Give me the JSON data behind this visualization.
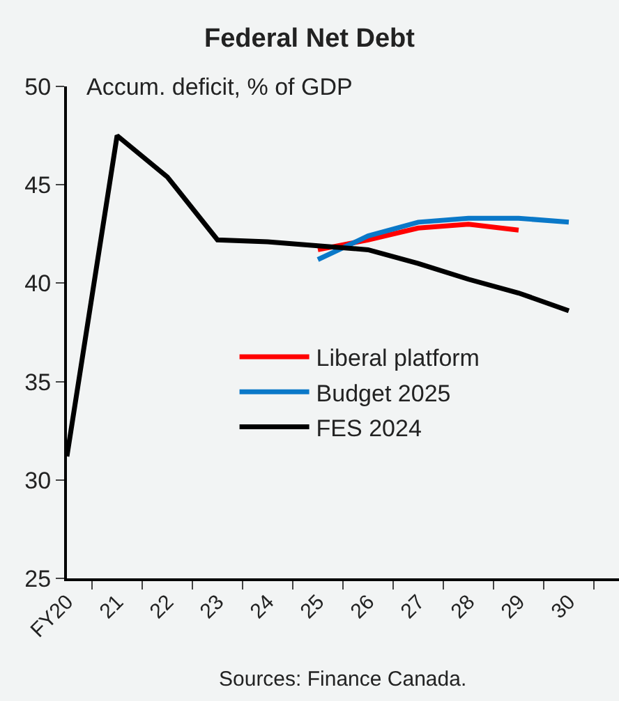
{
  "chart_data": {
    "type": "line",
    "title": "Federal Net Debt",
    "ylabel": "Accum. deficit, % of GDP",
    "categories": [
      "FY20",
      "21",
      "22",
      "23",
      "24",
      "25",
      "26",
      "27",
      "28",
      "29",
      "30",
      null
    ],
    "series": [
      {
        "name": "Liberal platform",
        "color": "#ff0000",
        "values": [
          null,
          null,
          null,
          null,
          null,
          41.7,
          42.2,
          42.8,
          43.0,
          42.7,
          null,
          null
        ]
      },
      {
        "name": "Budget 2025",
        "color": "#0a78c8",
        "values": [
          null,
          null,
          null,
          null,
          null,
          41.2,
          42.4,
          43.1,
          43.3,
          43.3,
          43.1,
          null
        ]
      },
      {
        "name": "FES 2024",
        "color": "#000000",
        "values": [
          31.2,
          47.5,
          45.4,
          42.2,
          42.1,
          41.9,
          41.7,
          41.0,
          40.2,
          39.5,
          38.6,
          null
        ]
      }
    ],
    "ylim": [
      25,
      50
    ],
    "yticks": [
      25,
      30,
      35,
      40,
      45,
      50
    ],
    "grid": false,
    "legend": "left",
    "marker": "none",
    "line_style": "solid",
    "annotations": [
      "Sources: Finance Canada."
    ]
  }
}
